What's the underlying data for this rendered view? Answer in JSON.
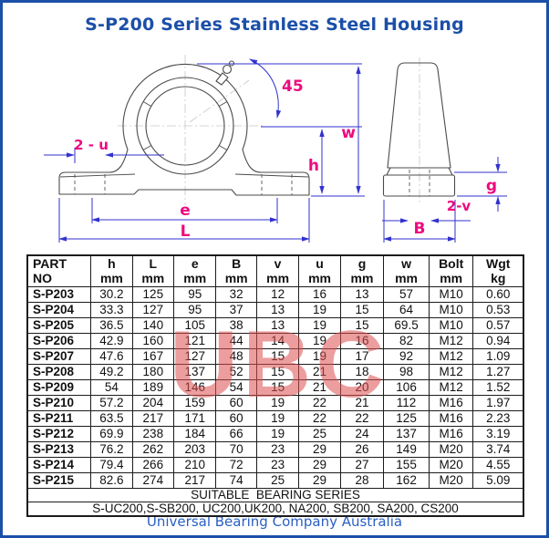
{
  "page": {
    "title": "S-P200 Series Stainless Steel Housing",
    "tagline": "Universal Bearing Company Australia",
    "watermark": "UBC",
    "accent_blue": "#1b4fa8",
    "dimension_line_blue": "#3232cf",
    "dimension_label_magenta": "#ee0a7e",
    "watermark_red": "#dd4f4f"
  },
  "diagram": {
    "front_view_labels": {
      "angle": "45",
      "bolt_holes": "2 - u",
      "bolt_span": "e",
      "length": "L",
      "center_height": "h",
      "total_height": "w"
    },
    "side_view_labels": {
      "base_height": "g",
      "bolt_holes": "2-v",
      "base_width": "B"
    }
  },
  "table": {
    "columns": [
      {
        "label": "PART",
        "sub": "NO"
      },
      {
        "label": "h",
        "sub": "mm"
      },
      {
        "label": "L",
        "sub": "mm"
      },
      {
        "label": "e",
        "sub": "mm"
      },
      {
        "label": "B",
        "sub": "mm"
      },
      {
        "label": "v",
        "sub": "mm"
      },
      {
        "label": "u",
        "sub": "mm"
      },
      {
        "label": "g",
        "sub": "mm"
      },
      {
        "label": "w",
        "sub": "mm"
      },
      {
        "label": "Bolt",
        "sub": "mm"
      },
      {
        "label": "Wgt",
        "sub": "kg"
      }
    ],
    "rows": [
      {
        "part": "S-P203",
        "values": [
          "30.2",
          "125",
          "95",
          "32",
          "12",
          "16",
          "13",
          "57",
          "M10",
          "0.60"
        ]
      },
      {
        "part": "S-P204",
        "values": [
          "33.3",
          "127",
          "95",
          "37",
          "13",
          "19",
          "15",
          "64",
          "M10",
          "0.53"
        ]
      },
      {
        "part": "S-P205",
        "values": [
          "36.5",
          "140",
          "105",
          "38",
          "13",
          "19",
          "15",
          "69.5",
          "M10",
          "0.57"
        ]
      },
      {
        "part": "S-P206",
        "values": [
          "42.9",
          "160",
          "121",
          "44",
          "14",
          "19",
          "16",
          "82",
          "M12",
          "0.94"
        ]
      },
      {
        "part": "S-P207",
        "values": [
          "47.6",
          "167",
          "127",
          "48",
          "15",
          "19",
          "17",
          "92",
          "M12",
          "1.09"
        ]
      },
      {
        "part": "S-P208",
        "values": [
          "49.2",
          "180",
          "137",
          "52",
          "15",
          "21",
          "18",
          "98",
          "M12",
          "1.27"
        ]
      },
      {
        "part": "S-P209",
        "values": [
          "54",
          "189",
          "146",
          "54",
          "15",
          "21",
          "20",
          "106",
          "M12",
          "1.52"
        ]
      },
      {
        "part": "S-P210",
        "values": [
          "57.2",
          "204",
          "159",
          "60",
          "19",
          "22",
          "21",
          "112",
          "M16",
          "1.97"
        ]
      },
      {
        "part": "S-P211",
        "values": [
          "63.5",
          "217",
          "171",
          "60",
          "19",
          "22",
          "22",
          "125",
          "M16",
          "2.23"
        ]
      },
      {
        "part": "S-P212",
        "values": [
          "69.9",
          "238",
          "184",
          "66",
          "19",
          "25",
          "24",
          "137",
          "M16",
          "3.19"
        ]
      },
      {
        "part": "S-P213",
        "values": [
          "76.2",
          "262",
          "203",
          "70",
          "23",
          "29",
          "26",
          "149",
          "M20",
          "3.74"
        ]
      },
      {
        "part": "S-P214",
        "values": [
          "79.4",
          "266",
          "210",
          "72",
          "23",
          "29",
          "27",
          "155",
          "M20",
          "4.55"
        ]
      },
      {
        "part": "S-P215",
        "values": [
          "82.6",
          "274",
          "217",
          "74",
          "25",
          "29",
          "28",
          "162",
          "M20",
          "5.09"
        ]
      }
    ],
    "footer_title": "SUITABLE  BEARING SERIES",
    "footer_series": "S-UC200,S-SB200, UC200,UK200, NA200, SB200, SA200, CS200"
  }
}
